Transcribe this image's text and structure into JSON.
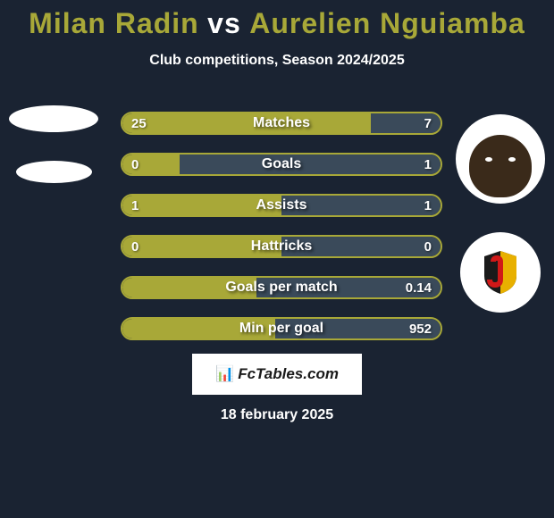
{
  "title": {
    "player1": "Milan Radin",
    "vs": "vs",
    "player2": "Aurelien Nguiamba",
    "color_p1": "#a8a838",
    "color_vs": "#ffffff",
    "color_p2": "#a8a838"
  },
  "subtitle": "Club competitions, Season 2024/2025",
  "bars": {
    "border_color": "#a8a838",
    "fill_left": "#a8a838",
    "fill_right": "#3a4a5a",
    "rows": [
      {
        "label": "Matches",
        "left": "25",
        "right": "7",
        "pct_left": 78
      },
      {
        "label": "Goals",
        "left": "0",
        "right": "1",
        "pct_left": 18
      },
      {
        "label": "Assists",
        "left": "1",
        "right": "1",
        "pct_left": 50
      },
      {
        "label": "Hattricks",
        "left": "0",
        "right": "0",
        "pct_left": 50
      },
      {
        "label": "Goals per match",
        "left": "",
        "right": "0.14",
        "pct_left": 42
      },
      {
        "label": "Min per goal",
        "left": "",
        "right": "952",
        "pct_left": 48
      }
    ]
  },
  "footer": {
    "brand_icon": "📊",
    "brand": "FcTables.com",
    "date": "18 february 2025"
  },
  "shield": {
    "bg": "#1a1a1a",
    "stripe1": "#e8b000",
    "stripe2": "#d01818"
  }
}
